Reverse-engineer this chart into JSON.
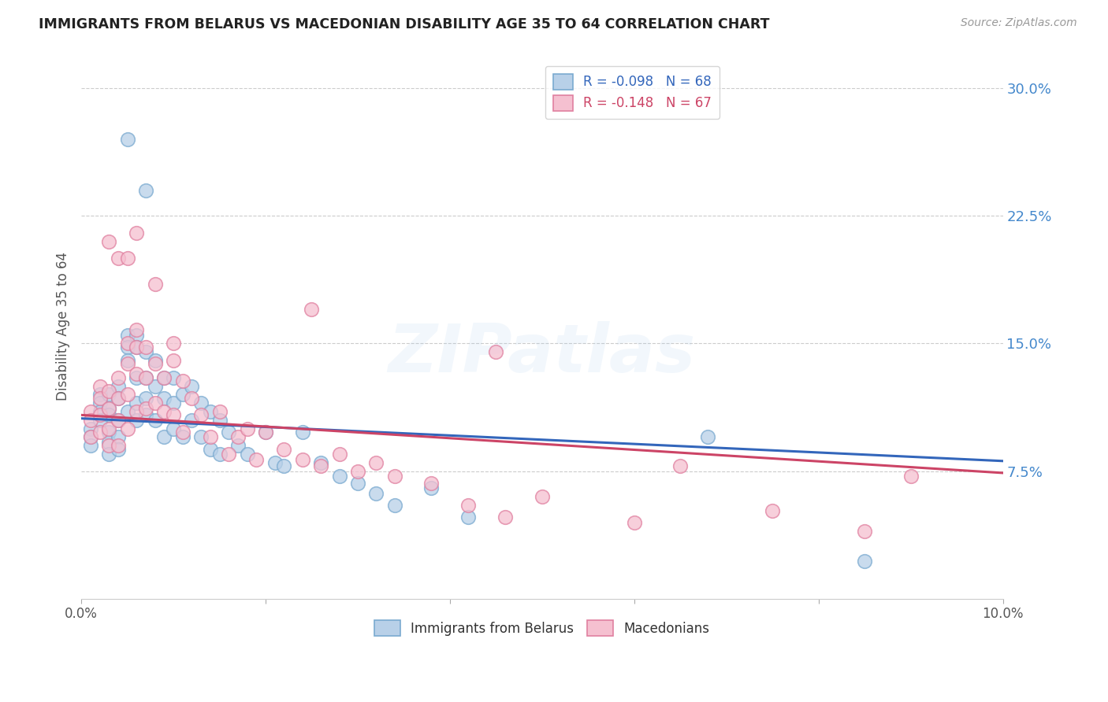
{
  "title": "IMMIGRANTS FROM BELARUS VS MACEDONIAN DISABILITY AGE 35 TO 64 CORRELATION CHART",
  "source": "Source: ZipAtlas.com",
  "ylabel": "Disability Age 35 to 64",
  "ytick_labels": [
    "7.5%",
    "15.0%",
    "22.5%",
    "30.0%"
  ],
  "ytick_values": [
    0.075,
    0.15,
    0.225,
    0.3
  ],
  "xlim": [
    0.0,
    0.1
  ],
  "ylim": [
    0.0,
    0.32
  ],
  "legend_blue": {
    "R": -0.098,
    "N": 68,
    "label": "Immigrants from Belarus"
  },
  "legend_pink": {
    "R": -0.148,
    "N": 67,
    "label": "Macedonians"
  },
  "color_blue": "#b8d0e8",
  "color_blue_edge": "#7aaad0",
  "color_pink": "#f5c0d0",
  "color_pink_edge": "#e080a0",
  "color_blue_line": "#3366bb",
  "color_pink_line": "#cc4466",
  "color_right_axis": "#4488cc",
  "blue_line_x0": 0.0,
  "blue_line_y0": 0.106,
  "blue_line_x1": 0.1,
  "blue_line_y1": 0.081,
  "pink_line_x0": 0.0,
  "pink_line_y0": 0.108,
  "pink_line_x1": 0.1,
  "pink_line_y1": 0.074,
  "blue_x": [
    0.001,
    0.001,
    0.001,
    0.002,
    0.002,
    0.002,
    0.002,
    0.003,
    0.003,
    0.003,
    0.003,
    0.003,
    0.003,
    0.004,
    0.004,
    0.004,
    0.004,
    0.004,
    0.005,
    0.005,
    0.005,
    0.005,
    0.006,
    0.006,
    0.006,
    0.006,
    0.006,
    0.007,
    0.007,
    0.007,
    0.007,
    0.008,
    0.008,
    0.008,
    0.009,
    0.009,
    0.009,
    0.01,
    0.01,
    0.01,
    0.011,
    0.011,
    0.012,
    0.012,
    0.013,
    0.013,
    0.014,
    0.014,
    0.015,
    0.015,
    0.016,
    0.017,
    0.018,
    0.02,
    0.021,
    0.022,
    0.024,
    0.026,
    0.028,
    0.03,
    0.032,
    0.034,
    0.038,
    0.042,
    0.005,
    0.007,
    0.068,
    0.085
  ],
  "blue_y": [
    0.1,
    0.095,
    0.09,
    0.12,
    0.115,
    0.11,
    0.105,
    0.12,
    0.112,
    0.108,
    0.098,
    0.092,
    0.085,
    0.125,
    0.118,
    0.105,
    0.095,
    0.088,
    0.155,
    0.148,
    0.14,
    0.11,
    0.155,
    0.148,
    0.13,
    0.115,
    0.105,
    0.145,
    0.13,
    0.118,
    0.108,
    0.14,
    0.125,
    0.105,
    0.13,
    0.118,
    0.095,
    0.13,
    0.115,
    0.1,
    0.12,
    0.095,
    0.125,
    0.105,
    0.115,
    0.095,
    0.11,
    0.088,
    0.105,
    0.085,
    0.098,
    0.09,
    0.085,
    0.098,
    0.08,
    0.078,
    0.098,
    0.08,
    0.072,
    0.068,
    0.062,
    0.055,
    0.065,
    0.048,
    0.27,
    0.24,
    0.095,
    0.022
  ],
  "pink_x": [
    0.001,
    0.001,
    0.001,
    0.002,
    0.002,
    0.002,
    0.002,
    0.003,
    0.003,
    0.003,
    0.003,
    0.004,
    0.004,
    0.004,
    0.004,
    0.005,
    0.005,
    0.005,
    0.005,
    0.006,
    0.006,
    0.006,
    0.006,
    0.007,
    0.007,
    0.007,
    0.008,
    0.008,
    0.009,
    0.009,
    0.01,
    0.01,
    0.011,
    0.011,
    0.012,
    0.013,
    0.014,
    0.015,
    0.016,
    0.017,
    0.018,
    0.019,
    0.02,
    0.022,
    0.024,
    0.026,
    0.028,
    0.03,
    0.032,
    0.034,
    0.038,
    0.042,
    0.046,
    0.05,
    0.06,
    0.065,
    0.075,
    0.085,
    0.09,
    0.003,
    0.004,
    0.005,
    0.006,
    0.008,
    0.01,
    0.025,
    0.045
  ],
  "pink_y": [
    0.11,
    0.105,
    0.095,
    0.125,
    0.118,
    0.108,
    0.098,
    0.122,
    0.112,
    0.1,
    0.09,
    0.13,
    0.118,
    0.105,
    0.09,
    0.15,
    0.138,
    0.12,
    0.1,
    0.158,
    0.148,
    0.132,
    0.11,
    0.148,
    0.13,
    0.112,
    0.138,
    0.115,
    0.13,
    0.11,
    0.14,
    0.108,
    0.128,
    0.098,
    0.118,
    0.108,
    0.095,
    0.11,
    0.085,
    0.095,
    0.1,
    0.082,
    0.098,
    0.088,
    0.082,
    0.078,
    0.085,
    0.075,
    0.08,
    0.072,
    0.068,
    0.055,
    0.048,
    0.06,
    0.045,
    0.078,
    0.052,
    0.04,
    0.072,
    0.21,
    0.2,
    0.2,
    0.215,
    0.185,
    0.15,
    0.17,
    0.145
  ]
}
